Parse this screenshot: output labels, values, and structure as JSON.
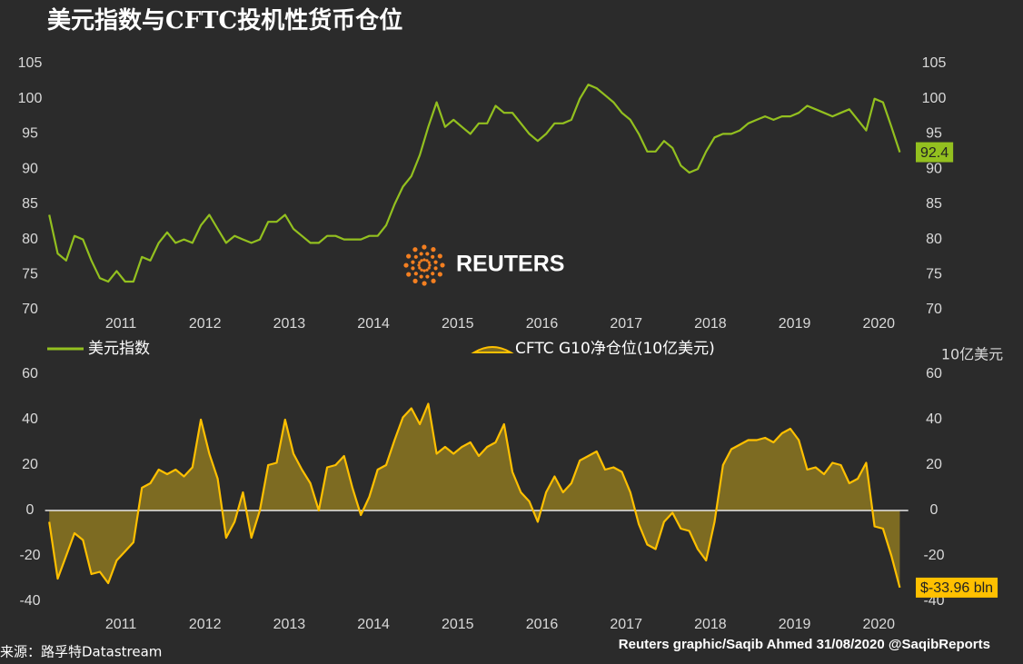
{
  "title": "美元指数与CFTC投机性货币仓位",
  "logo": "REUTERS",
  "source": "来源：路孚特Datastream",
  "credit": "Reuters graphic/Saqib Ahmed 31/08/2020 @SaqibReports",
  "chart_data": [
    {
      "type": "line",
      "xlim": [
        2010.6,
        2020.85
      ],
      "xticks": [
        {
          "value": 2011.5,
          "label": "2011"
        },
        {
          "value": 2012.5,
          "label": "2012"
        },
        {
          "value": 2013.5,
          "label": "2013"
        },
        {
          "value": 2014.5,
          "label": "2014"
        },
        {
          "value": 2015.5,
          "label": "2015"
        },
        {
          "value": 2016.5,
          "label": "2016"
        },
        {
          "value": 2017.5,
          "label": "2017"
        },
        {
          "value": 2018.5,
          "label": "2018"
        },
        {
          "value": 2019.5,
          "label": "2019"
        },
        {
          "value": 2020.5,
          "label": "2020"
        }
      ],
      "ylim": [
        70,
        105
      ],
      "yticks": [
        70,
        75,
        80,
        85,
        90,
        95,
        100,
        105
      ],
      "legend": true,
      "x": [
        2010.65,
        2010.75,
        2010.85,
        2010.95,
        2011.05,
        2011.15,
        2011.25,
        2011.35,
        2011.45,
        2011.55,
        2011.65,
        2011.75,
        2011.85,
        2011.95,
        2012.05,
        2012.15,
        2012.25,
        2012.35,
        2012.45,
        2012.55,
        2012.65,
        2012.75,
        2012.85,
        2012.95,
        2013.05,
        2013.15,
        2013.25,
        2013.35,
        2013.45,
        2013.55,
        2013.65,
        2013.75,
        2013.85,
        2013.95,
        2014.05,
        2014.15,
        2014.25,
        2014.35,
        2014.45,
        2014.55,
        2014.65,
        2014.75,
        2014.85,
        2014.95,
        2015.05,
        2015.15,
        2015.25,
        2015.35,
        2015.45,
        2015.55,
        2015.65,
        2015.75,
        2015.85,
        2015.95,
        2016.05,
        2016.15,
        2016.25,
        2016.35,
        2016.45,
        2016.55,
        2016.65,
        2016.75,
        2016.85,
        2016.95,
        2017.05,
        2017.15,
        2017.25,
        2017.35,
        2017.45,
        2017.55,
        2017.65,
        2017.75,
        2017.85,
        2017.95,
        2018.05,
        2018.15,
        2018.25,
        2018.35,
        2018.45,
        2018.55,
        2018.65,
        2018.75,
        2018.85,
        2018.95,
        2019.05,
        2019.15,
        2019.25,
        2019.35,
        2019.45,
        2019.55,
        2019.65,
        2019.75,
        2019.85,
        2019.95,
        2020.05,
        2020.15,
        2020.25,
        2020.35,
        2020.45,
        2020.55,
        2020.65,
        2020.75
      ],
      "series": [
        {
          "name": "美元指数",
          "color": "#93c01f",
          "values": [
            83.5,
            78,
            77,
            80.5,
            80,
            77,
            74.5,
            74,
            75.5,
            74,
            74,
            77.5,
            77,
            79.5,
            81,
            79.5,
            80,
            79.5,
            82,
            83.5,
            81.5,
            79.5,
            80.5,
            80,
            79.5,
            80,
            82.5,
            82.5,
            83.5,
            81.5,
            80.5,
            79.5,
            79.5,
            80.5,
            80.5,
            80,
            80,
            80,
            80.5,
            80.5,
            82,
            85,
            87.5,
            89,
            92,
            96,
            99.5,
            96,
            97,
            96,
            95,
            96.5,
            96.5,
            99,
            98,
            98,
            96.5,
            95,
            94,
            95,
            96.5,
            96.5,
            97,
            100,
            102,
            101.5,
            100.5,
            99.5,
            98,
            97,
            95,
            92.5,
            92.5,
            94,
            93,
            90.5,
            89.5,
            90,
            92.5,
            94.5,
            95,
            95,
            95.5,
            96.5,
            97,
            97.5,
            97,
            97.5,
            97.5,
            98,
            99,
            98.5,
            98,
            97.5,
            98,
            98.5,
            97,
            95.5,
            100,
            99.5,
            96,
            92.4
          ]
        }
      ]
    },
    {
      "type": "area",
      "xlim": [
        2010.6,
        2020.85
      ],
      "xticks": [
        {
          "value": 2011.5,
          "label": "2011"
        },
        {
          "value": 2012.5,
          "label": "2012"
        },
        {
          "value": 2013.5,
          "label": "2013"
        },
        {
          "value": 2014.5,
          "label": "2014"
        },
        {
          "value": 2015.5,
          "label": "2015"
        },
        {
          "value": 2016.5,
          "label": "2016"
        },
        {
          "value": 2017.5,
          "label": "2017"
        },
        {
          "value": 2018.5,
          "label": "2018"
        },
        {
          "value": 2019.5,
          "label": "2019"
        },
        {
          "value": 2020.5,
          "label": "2020"
        }
      ],
      "ylim": [
        -40,
        60
      ],
      "yticks": [
        -40,
        -20,
        0,
        20,
        40,
        60
      ],
      "y2label": "10亿美元",
      "legend": true,
      "x": [
        2010.65,
        2010.75,
        2010.85,
        2010.95,
        2011.05,
        2011.15,
        2011.25,
        2011.35,
        2011.45,
        2011.55,
        2011.65,
        2011.75,
        2011.85,
        2011.95,
        2012.05,
        2012.15,
        2012.25,
        2012.35,
        2012.45,
        2012.55,
        2012.65,
        2012.75,
        2012.85,
        2012.95,
        2013.05,
        2013.15,
        2013.25,
        2013.35,
        2013.45,
        2013.55,
        2013.65,
        2013.75,
        2013.85,
        2013.95,
        2014.05,
        2014.15,
        2014.25,
        2014.35,
        2014.45,
        2014.55,
        2014.65,
        2014.75,
        2014.85,
        2014.95,
        2015.05,
        2015.15,
        2015.25,
        2015.35,
        2015.45,
        2015.55,
        2015.65,
        2015.75,
        2015.85,
        2015.95,
        2016.05,
        2016.15,
        2016.25,
        2016.35,
        2016.45,
        2016.55,
        2016.65,
        2016.75,
        2016.85,
        2016.95,
        2017.05,
        2017.15,
        2017.25,
        2017.35,
        2017.45,
        2017.55,
        2017.65,
        2017.75,
        2017.85,
        2017.95,
        2018.05,
        2018.15,
        2018.25,
        2018.35,
        2018.45,
        2018.55,
        2018.65,
        2018.75,
        2018.85,
        2018.95,
        2019.05,
        2019.15,
        2019.25,
        2019.35,
        2019.45,
        2019.55,
        2019.65,
        2019.75,
        2019.85,
        2019.95,
        2020.05,
        2020.15,
        2020.25,
        2020.35,
        2020.45,
        2020.55,
        2020.65,
        2020.75
      ],
      "series": [
        {
          "name": "CFTC G10净仓位(10亿美元)",
          "color": "#ffc000",
          "fill": "#7d6b22",
          "values": [
            -5,
            -30,
            -20,
            -10,
            -13,
            -28,
            -27,
            -32,
            -22,
            -18,
            -14,
            10,
            12,
            18,
            16,
            18,
            15,
            19,
            40,
            25,
            14,
            -12,
            -5,
            8,
            -12,
            0,
            20,
            21,
            40,
            25,
            18,
            12,
            0,
            19,
            20,
            24,
            10,
            -2,
            6,
            18,
            20,
            31,
            41,
            45,
            38,
            47,
            25,
            28,
            25,
            28,
            30,
            24,
            28,
            30,
            38,
            17,
            8,
            4,
            -5,
            8,
            15,
            8,
            12,
            22,
            24,
            26,
            18,
            19,
            17,
            8,
            -6,
            -15,
            -17,
            -5,
            -1,
            -8,
            -9,
            -17,
            -22,
            -5,
            20,
            27,
            29,
            31,
            31,
            32,
            30,
            34,
            36,
            31,
            18,
            19,
            16,
            21,
            20,
            12,
            14,
            21,
            -7,
            -8,
            -20,
            -33.96
          ],
          "value_labels": {
            "101": "$-33.96 bln"
          }
        }
      ]
    }
  ]
}
